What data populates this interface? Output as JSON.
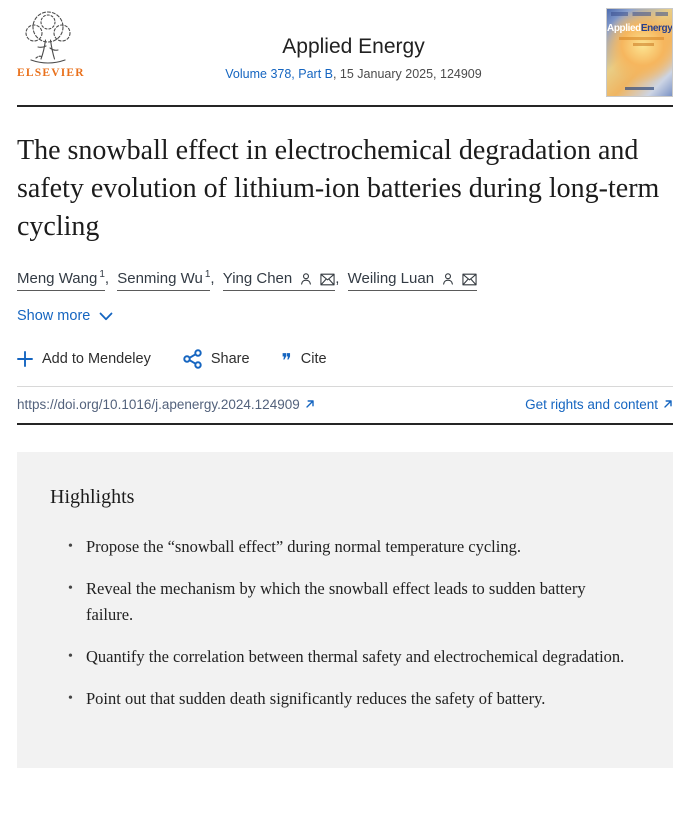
{
  "header": {
    "publisher": "ELSEVIER",
    "journal_title": "Applied Energy",
    "volume_link": "Volume 378, Part B",
    "issue_info": ", 15 January 2025, 124909",
    "cover_title_1": "Applied",
    "cover_title_2": "Energy"
  },
  "article": {
    "title": "The snowball effect in electrochemical degradation and safety evolution of lithium-ion batteries during long-term cycling",
    "authors": [
      {
        "name": "Meng Wang",
        "sup": "1",
        "icons": false
      },
      {
        "name": "Senming Wu",
        "sup": "1",
        "icons": false
      },
      {
        "name": "Ying Chen",
        "sup": "",
        "icons": true
      },
      {
        "name": "Weiling Luan",
        "sup": "",
        "icons": true
      }
    ],
    "show_more_label": "Show more",
    "actions": {
      "mendeley_label": "Add to Mendeley",
      "share_label": "Share",
      "cite_label": "Cite"
    },
    "doi": "https://doi.org/10.1016/j.apenergy.2024.124909",
    "rights_label": "Get rights and content"
  },
  "highlights": {
    "heading": "Highlights",
    "items": [
      "Propose the “snowball effect” during normal temperature cycling.",
      "Reveal the mechanism by which the snowball effect leads to sudden battery failure.",
      "Quantify the correlation between thermal safety and electrochemical degradation.",
      "Point out that sudden death significantly reduces the safety of battery."
    ]
  },
  "colors": {
    "accent_blue": "#1565c0",
    "elsevier_orange": "#e9711c",
    "doi_text": "#53627c",
    "highlights_bg": "#f2f2f2"
  }
}
